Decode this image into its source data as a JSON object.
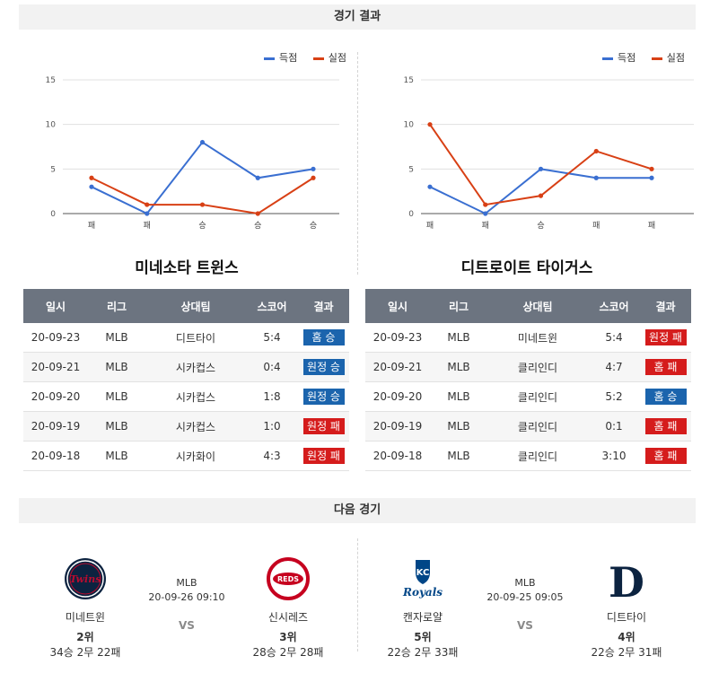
{
  "sections": {
    "results": "경기 결과",
    "next": "다음 경기"
  },
  "legend": {
    "scored": "득점",
    "allowed": "실점"
  },
  "colors": {
    "scored": "#3a6fd1",
    "allowed": "#d84015",
    "win": "#1b64ad",
    "loss": "#d51c1c",
    "header": "#6c7480"
  },
  "chart_data": [
    {
      "type": "line",
      "categories": [
        "패",
        "패",
        "승",
        "승",
        "승"
      ],
      "series": [
        {
          "name": "득점",
          "values": [
            3,
            0,
            8,
            4,
            5
          ]
        },
        {
          "name": "실점",
          "values": [
            4,
            1,
            1,
            0,
            4
          ]
        }
      ],
      "yticks": [
        0,
        5,
        10,
        15
      ],
      "ylim": [
        0,
        15
      ],
      "legend": "top-right",
      "grid": "horizontal"
    },
    {
      "type": "line",
      "categories": [
        "패",
        "패",
        "승",
        "패",
        "패"
      ],
      "series": [
        {
          "name": "득점",
          "values": [
            3,
            0,
            5,
            4,
            4
          ]
        },
        {
          "name": "실점",
          "values": [
            10,
            1,
            2,
            7,
            5
          ]
        }
      ],
      "yticks": [
        0,
        5,
        10,
        15
      ],
      "ylim": [
        0,
        15
      ],
      "legend": "top-right",
      "grid": "horizontal"
    }
  ],
  "teams": [
    {
      "name": "미네소타 트윈스",
      "headers": [
        "일시",
        "리그",
        "상대팀",
        "스코어",
        "결과"
      ],
      "rows": [
        {
          "date": "20-09-23",
          "league": "MLB",
          "opponent": "디트타이",
          "score": "5:4",
          "result": "홈 승",
          "win": true
        },
        {
          "date": "20-09-21",
          "league": "MLB",
          "opponent": "시카컵스",
          "score": "0:4",
          "result": "원정 승",
          "win": true
        },
        {
          "date": "20-09-20",
          "league": "MLB",
          "opponent": "시카컵스",
          "score": "1:8",
          "result": "원정 승",
          "win": true
        },
        {
          "date": "20-09-19",
          "league": "MLB",
          "opponent": "시카컵스",
          "score": "1:0",
          "result": "원정 패",
          "win": false
        },
        {
          "date": "20-09-18",
          "league": "MLB",
          "opponent": "시카화이",
          "score": "4:3",
          "result": "원정 패",
          "win": false
        }
      ]
    },
    {
      "name": "디트로이트 타이거스",
      "headers": [
        "일시",
        "리그",
        "상대팀",
        "스코어",
        "결과"
      ],
      "rows": [
        {
          "date": "20-09-23",
          "league": "MLB",
          "opponent": "미네트윈",
          "score": "5:4",
          "result": "원정 패",
          "win": false
        },
        {
          "date": "20-09-21",
          "league": "MLB",
          "opponent": "클리인디",
          "score": "4:7",
          "result": "홈 패",
          "win": false
        },
        {
          "date": "20-09-20",
          "league": "MLB",
          "opponent": "클리인디",
          "score": "5:2",
          "result": "홈 승",
          "win": true
        },
        {
          "date": "20-09-19",
          "league": "MLB",
          "opponent": "클리인디",
          "score": "0:1",
          "result": "홈 패",
          "win": false
        },
        {
          "date": "20-09-18",
          "league": "MLB",
          "opponent": "클리인디",
          "score": "3:10",
          "result": "홈 패",
          "win": false
        }
      ]
    }
  ],
  "next_games": [
    {
      "league": "MLB",
      "datetime": "20-09-26 09:10",
      "vs": "VS",
      "home": {
        "name": "미네트윈",
        "rank": "2위",
        "record": "34승 2무 22패",
        "logo": "twins-logo",
        "logo_text": "Twins"
      },
      "away": {
        "name": "신시레즈",
        "rank": "3위",
        "record": "28승 2무 28패",
        "logo": "reds-logo",
        "logo_text": "REDS"
      }
    },
    {
      "league": "MLB",
      "datetime": "20-09-25 09:05",
      "vs": "VS",
      "home": {
        "name": "캔자로얄",
        "rank": "5위",
        "record": "22승 2무 33패",
        "logo": "royals-logo",
        "logo_text": "Royals"
      },
      "away": {
        "name": "디트타이",
        "rank": "4위",
        "record": "22승 2무 31패",
        "logo": "tigers-logo",
        "logo_text": "D"
      }
    }
  ]
}
